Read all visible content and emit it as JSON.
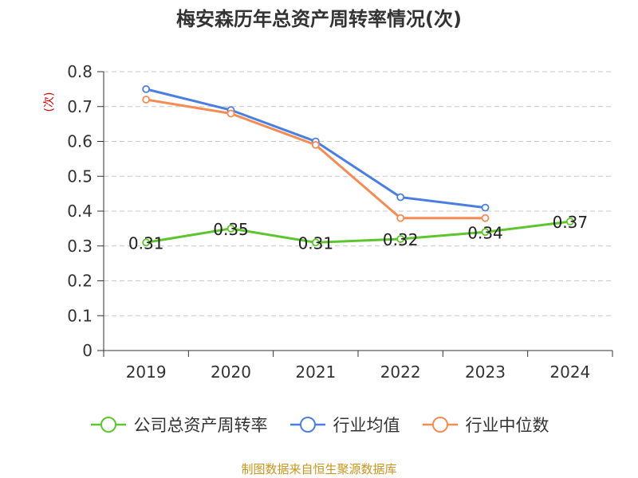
{
  "chart_data": {
    "type": "line",
    "title": "梅安森历年总资产周转率情况(次)",
    "ylabel": "(次)",
    "xlabel": "",
    "categories": [
      "2019",
      "2020",
      "2021",
      "2022",
      "2023",
      "2024"
    ],
    "ylim": [
      0,
      0.8
    ],
    "yticks": [
      "0",
      "0.1",
      "0.2",
      "0.3",
      "0.4",
      "0.5",
      "0.6",
      "0.7",
      "0.8"
    ],
    "grid": true,
    "legend_position": "bottom",
    "series": [
      {
        "name": "公司总资产周转率",
        "color": "#5fc52e",
        "values": [
          0.31,
          0.35,
          0.31,
          0.32,
          0.34,
          0.37
        ],
        "labels": [
          "0.31",
          "0.35",
          "0.31",
          "0.32",
          "0.34",
          "0.37"
        ]
      },
      {
        "name": "行业均值",
        "color": "#4a7fe0",
        "values": [
          0.75,
          0.69,
          0.6,
          0.44,
          0.41,
          null
        ]
      },
      {
        "name": "行业中位数",
        "color": "#f58b55",
        "values": [
          0.72,
          0.68,
          0.59,
          0.38,
          0.38,
          null
        ]
      }
    ]
  },
  "source": "制图数据来自恒生聚源数据库"
}
